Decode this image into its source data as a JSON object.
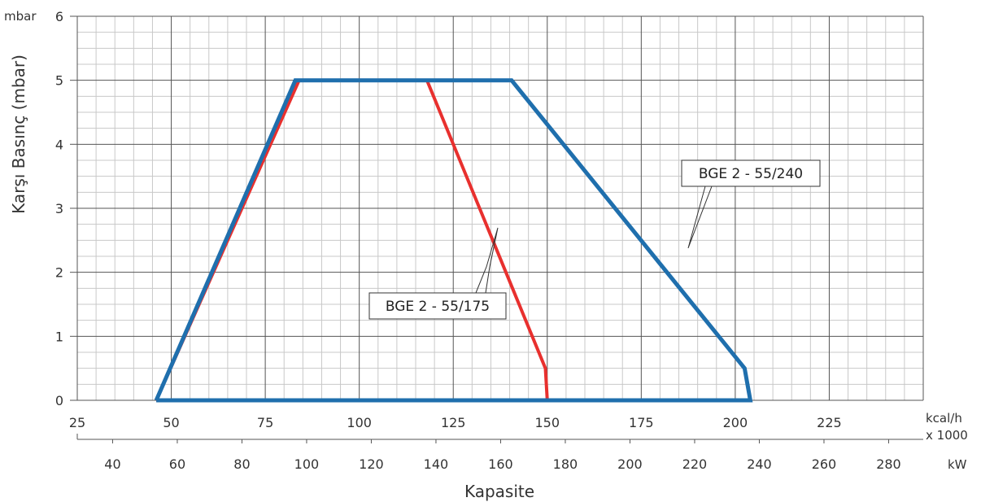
{
  "chart_data": {
    "type": "line",
    "title": "",
    "ylabel": "Karşı Basınç (mbar)",
    "y_unit": "mbar",
    "xlabel": "Kapasite",
    "ylim": [
      0,
      6
    ],
    "y_ticks": [
      "0",
      "1",
      "2",
      "3",
      "4",
      "5",
      "6"
    ],
    "x_axis_kcal": {
      "unit": "kcal/h",
      "unit_line2": "x 1000",
      "range": [
        25,
        250
      ],
      "ticks": [
        "25",
        "50",
        "75",
        "100",
        "125",
        "150",
        "175",
        "200",
        "225"
      ]
    },
    "x_axis_kw": {
      "unit": "kW",
      "range": [
        29.07,
        290.7
      ],
      "ticks": [
        "40",
        "60",
        "80",
        "100",
        "120",
        "140",
        "160",
        "180",
        "200",
        "220",
        "240",
        "260",
        "280"
      ]
    },
    "grid": true,
    "series": [
      {
        "name": "BGE 2 - 55/175",
        "color": "#e8302e",
        "points": [
          {
            "x": 46,
            "y": 0
          },
          {
            "x": 84,
            "y": 5
          },
          {
            "x": 118,
            "y": 5
          },
          {
            "x": 149.5,
            "y": 0.5
          },
          {
            "x": 150,
            "y": 0
          },
          {
            "x": 46,
            "y": 0
          }
        ]
      },
      {
        "name": "BGE 2 - 55/240",
        "color": "#1f6fad",
        "points": [
          {
            "x": 46,
            "y": 0
          },
          {
            "x": 83,
            "y": 5
          },
          {
            "x": 140.5,
            "y": 5
          },
          {
            "x": 202.5,
            "y": 0.5
          },
          {
            "x": 204,
            "y": 0
          },
          {
            "x": 46,
            "y": 0
          }
        ]
      }
    ]
  }
}
